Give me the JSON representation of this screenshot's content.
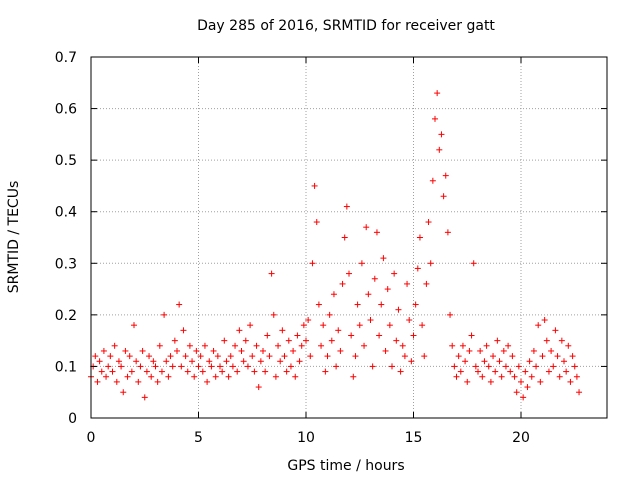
{
  "chart_data": {
    "type": "scatter",
    "title": "Day 285 of 2016, SRMTID for receiver gatt",
    "xlabel": "GPS time / hours",
    "ylabel": "SRMTID / TECUs",
    "xlim": [
      0,
      24
    ],
    "ylim": [
      0,
      0.7
    ],
    "xticks": [
      0,
      5,
      10,
      15,
      20
    ],
    "yticks": [
      0,
      0.1,
      0.2,
      0.3,
      0.4,
      0.5,
      0.6,
      0.7
    ],
    "xtick_labels": [
      "0",
      "5",
      "10",
      "15",
      "20"
    ],
    "ytick_labels": [
      "0",
      "0.1",
      "0.2",
      "0.3",
      "0.4",
      "0.5",
      "0.6",
      "0.7"
    ],
    "grid": true,
    "marker": "plus",
    "color": "#ff0000",
    "series": [
      {
        "name": "SRMTID",
        "points": [
          [
            0.0,
            0.08
          ],
          [
            0.1,
            0.1
          ],
          [
            0.2,
            0.12
          ],
          [
            0.3,
            0.07
          ],
          [
            0.4,
            0.11
          ],
          [
            0.5,
            0.09
          ],
          [
            0.6,
            0.13
          ],
          [
            0.7,
            0.08
          ],
          [
            0.8,
            0.1
          ],
          [
            0.9,
            0.12
          ],
          [
            1.0,
            0.09
          ],
          [
            1.1,
            0.14
          ],
          [
            1.2,
            0.07
          ],
          [
            1.3,
            0.11
          ],
          [
            1.4,
            0.1
          ],
          [
            1.5,
            0.05
          ],
          [
            1.6,
            0.13
          ],
          [
            1.7,
            0.08
          ],
          [
            1.8,
            0.12
          ],
          [
            1.9,
            0.09
          ],
          [
            2.0,
            0.18
          ],
          [
            2.1,
            0.11
          ],
          [
            2.2,
            0.07
          ],
          [
            2.3,
            0.1
          ],
          [
            2.4,
            0.13
          ],
          [
            2.5,
            0.04
          ],
          [
            2.6,
            0.09
          ],
          [
            2.7,
            0.12
          ],
          [
            2.8,
            0.08
          ],
          [
            2.9,
            0.11
          ],
          [
            3.0,
            0.1
          ],
          [
            3.1,
            0.07
          ],
          [
            3.2,
            0.14
          ],
          [
            3.3,
            0.09
          ],
          [
            3.4,
            0.2
          ],
          [
            3.5,
            0.11
          ],
          [
            3.6,
            0.08
          ],
          [
            3.7,
            0.12
          ],
          [
            3.8,
            0.1
          ],
          [
            3.9,
            0.15
          ],
          [
            4.0,
            0.13
          ],
          [
            4.1,
            0.22
          ],
          [
            4.2,
            0.1
          ],
          [
            4.3,
            0.17
          ],
          [
            4.4,
            0.12
          ],
          [
            4.5,
            0.09
          ],
          [
            4.6,
            0.14
          ],
          [
            4.7,
            0.11
          ],
          [
            4.8,
            0.08
          ],
          [
            4.9,
            0.13
          ],
          [
            5.0,
            0.1
          ],
          [
            5.1,
            0.12
          ],
          [
            5.2,
            0.09
          ],
          [
            5.3,
            0.14
          ],
          [
            5.4,
            0.07
          ],
          [
            5.5,
            0.11
          ],
          [
            5.6,
            0.1
          ],
          [
            5.7,
            0.13
          ],
          [
            5.8,
            0.08
          ],
          [
            5.9,
            0.12
          ],
          [
            6.0,
            0.1
          ],
          [
            6.1,
            0.09
          ],
          [
            6.2,
            0.15
          ],
          [
            6.3,
            0.11
          ],
          [
            6.4,
            0.08
          ],
          [
            6.5,
            0.12
          ],
          [
            6.6,
            0.1
          ],
          [
            6.7,
            0.14
          ],
          [
            6.8,
            0.09
          ],
          [
            6.9,
            0.17
          ],
          [
            7.0,
            0.13
          ],
          [
            7.1,
            0.11
          ],
          [
            7.2,
            0.15
          ],
          [
            7.3,
            0.1
          ],
          [
            7.4,
            0.18
          ],
          [
            7.5,
            0.12
          ],
          [
            7.6,
            0.09
          ],
          [
            7.7,
            0.14
          ],
          [
            7.8,
            0.06
          ],
          [
            7.9,
            0.11
          ],
          [
            8.0,
            0.13
          ],
          [
            8.1,
            0.09
          ],
          [
            8.2,
            0.16
          ],
          [
            8.3,
            0.12
          ],
          [
            8.4,
            0.28
          ],
          [
            8.5,
            0.2
          ],
          [
            8.6,
            0.08
          ],
          [
            8.7,
            0.14
          ],
          [
            8.8,
            0.11
          ],
          [
            8.9,
            0.17
          ],
          [
            9.0,
            0.12
          ],
          [
            9.1,
            0.09
          ],
          [
            9.2,
            0.15
          ],
          [
            9.3,
            0.1
          ],
          [
            9.4,
            0.13
          ],
          [
            9.5,
            0.08
          ],
          [
            9.6,
            0.16
          ],
          [
            9.7,
            0.11
          ],
          [
            9.8,
            0.14
          ],
          [
            9.9,
            0.18
          ],
          [
            10.0,
            0.15
          ],
          [
            10.1,
            0.19
          ],
          [
            10.2,
            0.12
          ],
          [
            10.3,
            0.3
          ],
          [
            10.4,
            0.45
          ],
          [
            10.5,
            0.38
          ],
          [
            10.6,
            0.22
          ],
          [
            10.7,
            0.14
          ],
          [
            10.8,
            0.18
          ],
          [
            10.9,
            0.09
          ],
          [
            11.0,
            0.12
          ],
          [
            11.1,
            0.2
          ],
          [
            11.2,
            0.15
          ],
          [
            11.3,
            0.24
          ],
          [
            11.4,
            0.1
          ],
          [
            11.5,
            0.17
          ],
          [
            11.6,
            0.13
          ],
          [
            11.7,
            0.26
          ],
          [
            11.8,
            0.35
          ],
          [
            11.9,
            0.41
          ],
          [
            12.0,
            0.28
          ],
          [
            12.1,
            0.16
          ],
          [
            12.2,
            0.08
          ],
          [
            12.3,
            0.12
          ],
          [
            12.4,
            0.22
          ],
          [
            12.5,
            0.18
          ],
          [
            12.6,
            0.3
          ],
          [
            12.7,
            0.14
          ],
          [
            12.8,
            0.37
          ],
          [
            12.9,
            0.24
          ],
          [
            13.0,
            0.19
          ],
          [
            13.1,
            0.1
          ],
          [
            13.2,
            0.27
          ],
          [
            13.3,
            0.36
          ],
          [
            13.4,
            0.16
          ],
          [
            13.5,
            0.22
          ],
          [
            13.6,
            0.31
          ],
          [
            13.7,
            0.13
          ],
          [
            13.8,
            0.25
          ],
          [
            13.9,
            0.18
          ],
          [
            14.0,
            0.1
          ],
          [
            14.1,
            0.28
          ],
          [
            14.2,
            0.15
          ],
          [
            14.3,
            0.21
          ],
          [
            14.4,
            0.09
          ],
          [
            14.5,
            0.14
          ],
          [
            14.6,
            0.12
          ],
          [
            14.7,
            0.26
          ],
          [
            14.8,
            0.19
          ],
          [
            14.9,
            0.11
          ],
          [
            15.0,
            0.16
          ],
          [
            15.1,
            0.22
          ],
          [
            15.2,
            0.29
          ],
          [
            15.3,
            0.35
          ],
          [
            15.4,
            0.18
          ],
          [
            15.5,
            0.12
          ],
          [
            15.6,
            0.26
          ],
          [
            15.7,
            0.38
          ],
          [
            15.8,
            0.3
          ],
          [
            15.9,
            0.46
          ],
          [
            16.0,
            0.58
          ],
          [
            16.1,
            0.63
          ],
          [
            16.2,
            0.52
          ],
          [
            16.3,
            0.55
          ],
          [
            16.4,
            0.43
          ],
          [
            16.5,
            0.47
          ],
          [
            16.6,
            0.36
          ],
          [
            16.7,
            0.2
          ],
          [
            16.8,
            0.14
          ],
          [
            16.9,
            0.1
          ],
          [
            17.0,
            0.08
          ],
          [
            17.1,
            0.12
          ],
          [
            17.2,
            0.09
          ],
          [
            17.3,
            0.14
          ],
          [
            17.4,
            0.11
          ],
          [
            17.5,
            0.07
          ],
          [
            17.6,
            0.13
          ],
          [
            17.7,
            0.16
          ],
          [
            17.8,
            0.3
          ],
          [
            17.9,
            0.1
          ],
          [
            18.0,
            0.09
          ],
          [
            18.1,
            0.13
          ],
          [
            18.2,
            0.08
          ],
          [
            18.3,
            0.11
          ],
          [
            18.4,
            0.14
          ],
          [
            18.5,
            0.1
          ],
          [
            18.6,
            0.07
          ],
          [
            18.7,
            0.12
          ],
          [
            18.8,
            0.09
          ],
          [
            18.9,
            0.15
          ],
          [
            19.0,
            0.11
          ],
          [
            19.1,
            0.08
          ],
          [
            19.2,
            0.13
          ],
          [
            19.3,
            0.1
          ],
          [
            19.4,
            0.14
          ],
          [
            19.5,
            0.09
          ],
          [
            19.6,
            0.12
          ],
          [
            19.7,
            0.08
          ],
          [
            19.8,
            0.05
          ],
          [
            19.9,
            0.1
          ],
          [
            20.0,
            0.07
          ],
          [
            20.1,
            0.04
          ],
          [
            20.2,
            0.09
          ],
          [
            20.3,
            0.06
          ],
          [
            20.4,
            0.11
          ],
          [
            20.5,
            0.08
          ],
          [
            20.6,
            0.13
          ],
          [
            20.7,
            0.1
          ],
          [
            20.8,
            0.18
          ],
          [
            20.9,
            0.07
          ],
          [
            21.0,
            0.12
          ],
          [
            21.1,
            0.19
          ],
          [
            21.2,
            0.15
          ],
          [
            21.3,
            0.09
          ],
          [
            21.4,
            0.13
          ],
          [
            21.5,
            0.1
          ],
          [
            21.6,
            0.17
          ],
          [
            21.7,
            0.12
          ],
          [
            21.8,
            0.08
          ],
          [
            21.9,
            0.15
          ],
          [
            22.0,
            0.11
          ],
          [
            22.1,
            0.09
          ],
          [
            22.2,
            0.14
          ],
          [
            22.3,
            0.07
          ],
          [
            22.4,
            0.12
          ],
          [
            22.5,
            0.1
          ],
          [
            22.6,
            0.08
          ],
          [
            22.7,
            0.05
          ]
        ]
      }
    ]
  }
}
